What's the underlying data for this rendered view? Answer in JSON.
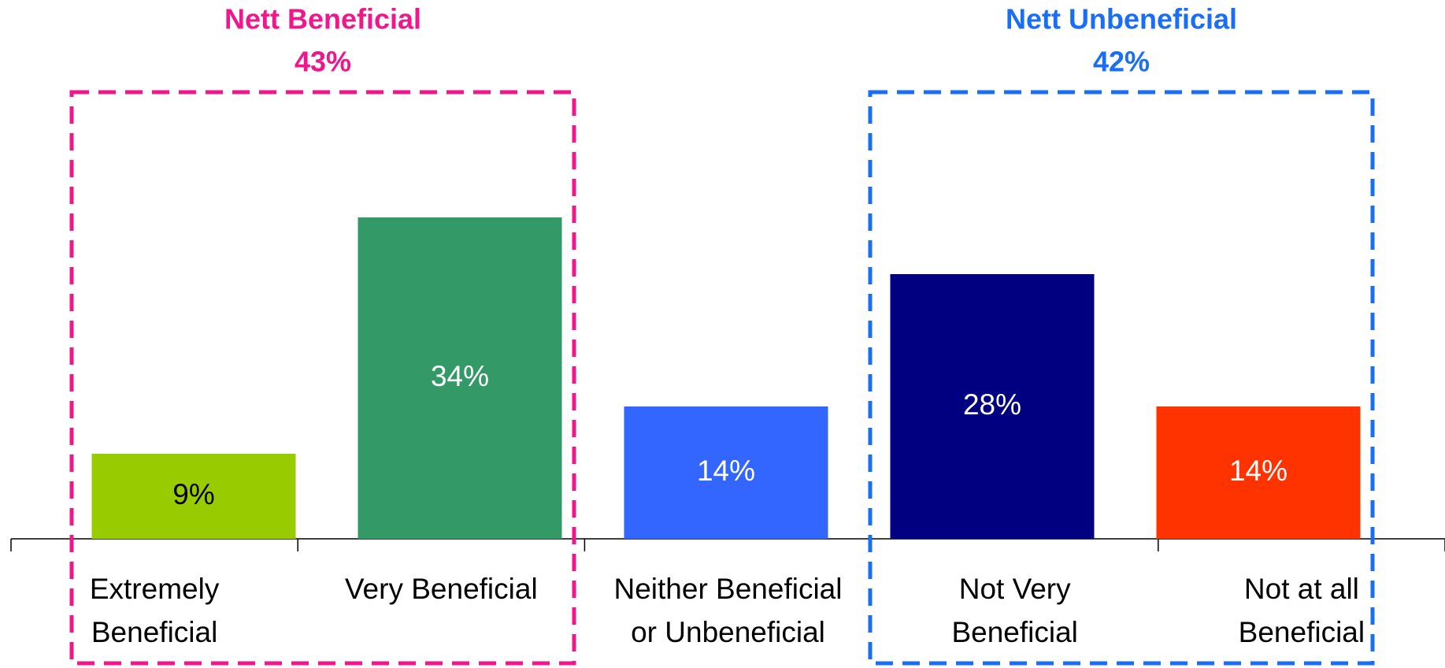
{
  "chart_data": {
    "type": "bar",
    "categories": [
      [
        "Extremely",
        "Beneficial"
      ],
      [
        "Very Beneficial"
      ],
      [
        "Neither Beneficial",
        "or Unbeneficial"
      ],
      [
        "Not Very",
        "Beneficial"
      ],
      [
        "Not at all",
        "Beneficial"
      ]
    ],
    "values": [
      9,
      34,
      14,
      28,
      14
    ],
    "value_labels": [
      "9%",
      "34%",
      "14%",
      "28%",
      "14%"
    ],
    "colors": [
      "#99cc00",
      "#339966",
      "#3366ff",
      "#000080",
      "#ff3300"
    ],
    "value_label_colors": [
      "#000000",
      "#ffffff",
      "#ffffff",
      "#ffffff",
      "#ffffff"
    ],
    "annotations": [
      {
        "text": "Nett Beneficial",
        "value": 43,
        "value_label": "43%",
        "color": "#f0168c",
        "span": [
          0,
          1
        ]
      },
      {
        "text": "Nett Unbeneficial",
        "value": 42,
        "value_label": "42%",
        "color": "#1a6ef5",
        "span": [
          3,
          4
        ]
      }
    ]
  }
}
